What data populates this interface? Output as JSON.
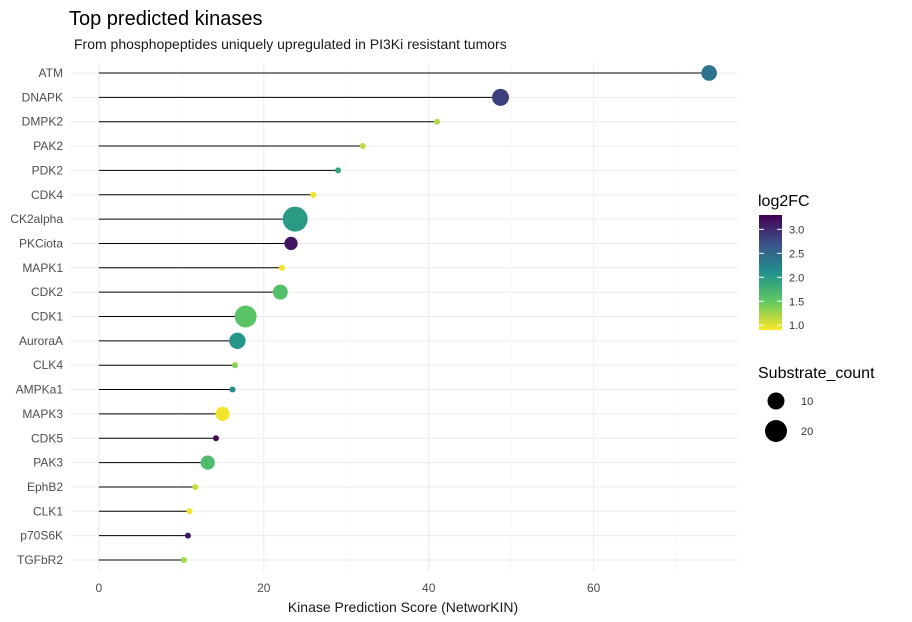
{
  "chart_data": {
    "type": "scatter",
    "title": "Top predicted kinases",
    "subtitle": "From phosphopeptides uniquely upregulated in PI3Ki resistant tumors",
    "xlabel": "Kinase Prediction Score (NetworKIN)",
    "ylabel": "",
    "xlim": [
      -3.5,
      77.5
    ],
    "x_ticks": [
      0,
      20,
      40,
      60
    ],
    "grid": true,
    "categories": [
      "ATM",
      "DNAPK",
      "DMPK2",
      "PAK2",
      "PDK2",
      "CDK4",
      "CK2alpha",
      "PKCiota",
      "MAPK1",
      "CDK2",
      "CDK1",
      "AuroraA",
      "CLK4",
      "AMPKa1",
      "MAPK3",
      "CDK5",
      "PAK3",
      "EphB2",
      "CLK1",
      "p70S6K",
      "TGFbR2"
    ],
    "points": [
      {
        "kinase": "ATM",
        "score": 74.0,
        "log2FC": 2.4,
        "substrate_count": 8
      },
      {
        "kinase": "DNAPK",
        "score": 48.7,
        "log2FC": 2.85,
        "substrate_count": 10
      },
      {
        "kinase": "DMPK2",
        "score": 41.0,
        "log2FC": 1.2,
        "substrate_count": 1
      },
      {
        "kinase": "PAK2",
        "score": 32.0,
        "log2FC": 1.15,
        "substrate_count": 1
      },
      {
        "kinase": "PDK2",
        "score": 29.0,
        "log2FC": 1.9,
        "substrate_count": 1
      },
      {
        "kinase": "CDK4",
        "score": 26.0,
        "log2FC": 0.95,
        "substrate_count": 1
      },
      {
        "kinase": "CK2alpha",
        "score": 23.8,
        "log2FC": 2.0,
        "substrate_count": 28
      },
      {
        "kinase": "PKCiota",
        "score": 23.3,
        "log2FC": 3.15,
        "substrate_count": 5
      },
      {
        "kinase": "MAPK1",
        "score": 22.2,
        "log2FC": 0.95,
        "substrate_count": 1
      },
      {
        "kinase": "CDK2",
        "score": 22.0,
        "log2FC": 1.6,
        "substrate_count": 7
      },
      {
        "kinase": "CDK1",
        "score": 17.8,
        "log2FC": 1.55,
        "substrate_count": 20
      },
      {
        "kinase": "AuroraA",
        "score": 16.8,
        "log2FC": 2.05,
        "substrate_count": 9
      },
      {
        "kinase": "CLK4",
        "score": 16.5,
        "log2FC": 1.35,
        "substrate_count": 1
      },
      {
        "kinase": "AMPKa1",
        "score": 16.2,
        "log2FC": 2.15,
        "substrate_count": 1
      },
      {
        "kinase": "MAPK3",
        "score": 15.0,
        "log2FC": 0.95,
        "substrate_count": 6
      },
      {
        "kinase": "CDK5",
        "score": 14.2,
        "log2FC": 3.25,
        "substrate_count": 1
      },
      {
        "kinase": "PAK3",
        "score": 13.2,
        "log2FC": 1.65,
        "substrate_count": 6
      },
      {
        "kinase": "EphB2",
        "score": 11.7,
        "log2FC": 1.1,
        "substrate_count": 1
      },
      {
        "kinase": "CLK1",
        "score": 11.0,
        "log2FC": 0.95,
        "substrate_count": 1
      },
      {
        "kinase": "p70S6K",
        "score": 10.8,
        "log2FC": 3.15,
        "substrate_count": 1
      },
      {
        "kinase": "TGFbR2",
        "score": 10.3,
        "log2FC": 1.25,
        "substrate_count": 1
      }
    ],
    "legend_color": {
      "title": "log2FC",
      "ticks": [
        "3.0",
        "2.5",
        "2.0",
        "1.5",
        "1.0"
      ],
      "tick_values": [
        3.0,
        2.5,
        2.0,
        1.5,
        1.0
      ],
      "range": [
        0.9,
        3.3
      ]
    },
    "legend_size": {
      "title": "Substrate_count",
      "labels": [
        "10",
        "20"
      ],
      "values": [
        10,
        20
      ]
    },
    "legend_placement": "right"
  }
}
